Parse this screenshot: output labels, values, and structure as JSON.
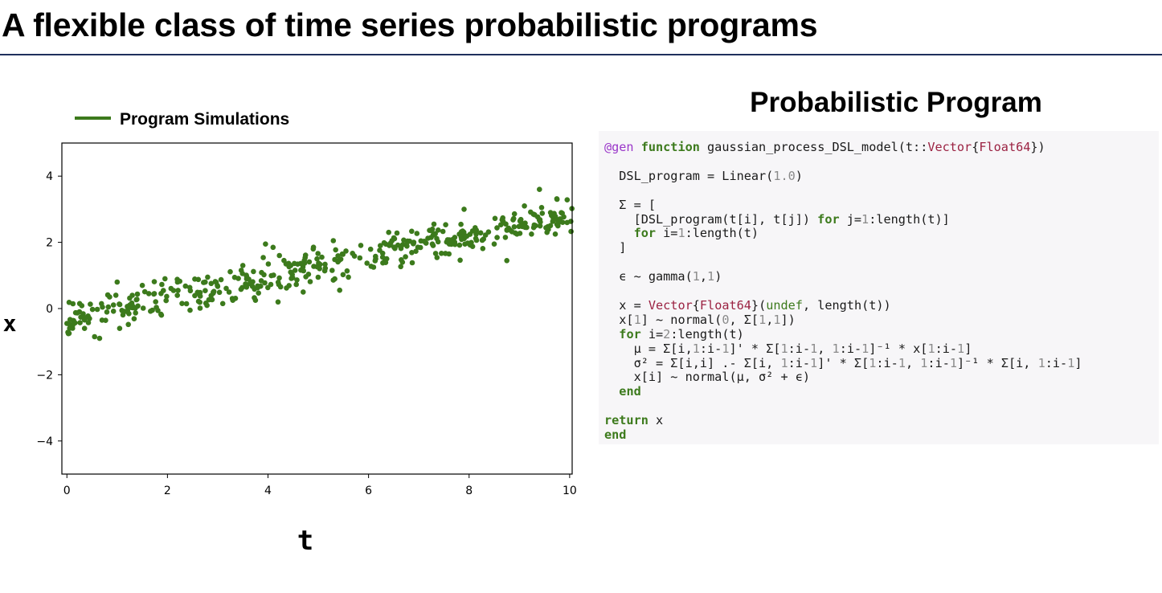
{
  "slide": {
    "title": "A flexible class of time series probabilistic programs"
  },
  "program": {
    "heading": "Probabilistic Program",
    "code_lines": [
      [
        {
          "t": "@gen",
          "c": "mac"
        },
        {
          "t": " "
        },
        {
          "t": "function",
          "c": "kw"
        },
        {
          "t": " gaussian_process_DSL_model(t::"
        },
        {
          "t": "Vector",
          "c": "ty"
        },
        {
          "t": "{"
        },
        {
          "t": "Float64",
          "c": "ty"
        },
        {
          "t": "})"
        }
      ],
      [],
      [
        {
          "t": "  DSL_program = Linear("
        },
        {
          "t": "1.0",
          "c": "num"
        },
        {
          "t": ")"
        }
      ],
      [],
      [
        {
          "t": "  Σ = ["
        }
      ],
      [
        {
          "t": "    [DSL_program(t[i], t[j]) "
        },
        {
          "t": "for",
          "c": "kw"
        },
        {
          "t": " j="
        },
        {
          "t": "1",
          "c": "num"
        },
        {
          "t": ":length(t)]"
        }
      ],
      [
        {
          "t": "    "
        },
        {
          "t": "for",
          "c": "kw"
        },
        {
          "t": " i="
        },
        {
          "t": "1",
          "c": "num"
        },
        {
          "t": ":length(t)"
        }
      ],
      [
        {
          "t": "  ]"
        }
      ],
      [],
      [
        {
          "t": "  ϵ ~ gamma("
        },
        {
          "t": "1",
          "c": "num"
        },
        {
          "t": ","
        },
        {
          "t": "1",
          "c": "num"
        },
        {
          "t": ")"
        }
      ],
      [],
      [
        {
          "t": "  x = "
        },
        {
          "t": "Vector",
          "c": "ty"
        },
        {
          "t": "{"
        },
        {
          "t": "Float64",
          "c": "ty"
        },
        {
          "t": "}("
        },
        {
          "t": "undef",
          "c": "ke"
        },
        {
          "t": ", length(t))"
        }
      ],
      [
        {
          "t": "  x["
        },
        {
          "t": "1",
          "c": "num"
        },
        {
          "t": "] ~ normal("
        },
        {
          "t": "0",
          "c": "num"
        },
        {
          "t": ", Σ["
        },
        {
          "t": "1",
          "c": "num"
        },
        {
          "t": ","
        },
        {
          "t": "1",
          "c": "num"
        },
        {
          "t": "])"
        }
      ],
      [
        {
          "t": "  "
        },
        {
          "t": "for",
          "c": "kw"
        },
        {
          "t": " i="
        },
        {
          "t": "2",
          "c": "num"
        },
        {
          "t": ":length(t)"
        }
      ],
      [
        {
          "t": "    μ = Σ[i,"
        },
        {
          "t": "1",
          "c": "num"
        },
        {
          "t": ":i-"
        },
        {
          "t": "1",
          "c": "num"
        },
        {
          "t": "]' * Σ["
        },
        {
          "t": "1",
          "c": "num"
        },
        {
          "t": ":i-"
        },
        {
          "t": "1",
          "c": "num"
        },
        {
          "t": ", "
        },
        {
          "t": "1",
          "c": "num"
        },
        {
          "t": ":i-"
        },
        {
          "t": "1",
          "c": "num"
        },
        {
          "t": "]⁻¹ * x["
        },
        {
          "t": "1",
          "c": "num"
        },
        {
          "t": ":i-"
        },
        {
          "t": "1",
          "c": "num"
        },
        {
          "t": "]"
        }
      ],
      [
        {
          "t": "    σ² = Σ[i,i] .- Σ[i, "
        },
        {
          "t": "1",
          "c": "num"
        },
        {
          "t": ":i-"
        },
        {
          "t": "1",
          "c": "num"
        },
        {
          "t": "]' * Σ["
        },
        {
          "t": "1",
          "c": "num"
        },
        {
          "t": ":i-"
        },
        {
          "t": "1",
          "c": "num"
        },
        {
          "t": ", "
        },
        {
          "t": "1",
          "c": "num"
        },
        {
          "t": ":i-"
        },
        {
          "t": "1",
          "c": "num"
        },
        {
          "t": "]⁻¹ * Σ[i, "
        },
        {
          "t": "1",
          "c": "num"
        },
        {
          "t": ":i-"
        },
        {
          "t": "1",
          "c": "num"
        },
        {
          "t": "]"
        }
      ],
      [
        {
          "t": "    x[i] ~ normal(μ, σ² + ϵ)"
        }
      ],
      [
        {
          "t": "  "
        },
        {
          "t": "end",
          "c": "kw"
        }
      ],
      [],
      [
        {
          "t": "return",
          "c": "kw"
        },
        {
          "t": " x"
        }
      ],
      [
        {
          "t": "end",
          "c": "kw"
        }
      ]
    ]
  },
  "chart_data": {
    "type": "scatter",
    "xlabel": "t",
    "ylabel": "x",
    "xlim": [
      -0.1,
      10.05
    ],
    "ylim": [
      -5,
      5
    ],
    "xticks": [
      0,
      2,
      4,
      6,
      8,
      10
    ],
    "yticks": [
      -4,
      -2,
      0,
      2,
      4
    ],
    "xtick_labels": [
      "0",
      "2",
      "4",
      "6",
      "8",
      "10"
    ],
    "ytick_labels": [
      "−4",
      "−2",
      "0",
      "2",
      "4"
    ],
    "grid": false,
    "legend_placement": "top-left, above axes",
    "color": "#3c7a1c",
    "series": [
      {
        "name": "Program Simulations",
        "n_points": 400,
        "trend_start": -0.3,
        "trend_slope": 0.31,
        "noise_sd": 0.27,
        "points": [
          [
            0.0,
            -0.45
          ],
          [
            0.1,
            -0.55
          ],
          [
            0.25,
            -0.1
          ],
          [
            0.35,
            -0.6
          ],
          [
            0.45,
            -0.3
          ],
          [
            0.55,
            -0.85
          ],
          [
            0.65,
            -0.9
          ],
          [
            0.7,
            -0.35
          ],
          [
            0.85,
            0.35
          ],
          [
            1.0,
            0.8
          ],
          [
            1.05,
            -0.6
          ],
          [
            1.3,
            0.4
          ],
          [
            1.5,
            0.7
          ],
          [
            1.7,
            -0.05
          ],
          [
            1.95,
            0.9
          ],
          [
            2.2,
            0.8
          ],
          [
            2.45,
            -0.05
          ],
          [
            2.8,
            0.95
          ],
          [
            3.1,
            0.15
          ],
          [
            3.3,
            0.25
          ],
          [
            3.5,
            1.3
          ],
          [
            3.75,
            0.25
          ],
          [
            3.95,
            1.95
          ],
          [
            4.1,
            1.85
          ],
          [
            4.2,
            0.2
          ],
          [
            4.45,
            1.1
          ],
          [
            4.7,
            0.5
          ],
          [
            4.9,
            1.8
          ],
          [
            5.3,
            2.05
          ],
          [
            5.6,
            0.95
          ],
          [
            6.1,
            1.25
          ],
          [
            6.4,
            2.3
          ],
          [
            6.9,
            2.0
          ],
          [
            7.3,
            2.55
          ],
          [
            7.6,
            1.65
          ],
          [
            7.9,
            3.0
          ],
          [
            8.5,
            1.95
          ],
          [
            8.75,
            1.45
          ],
          [
            9.1,
            3.1
          ],
          [
            9.4,
            3.6
          ],
          [
            9.55,
            2.3
          ],
          [
            9.75,
            3.3
          ],
          [
            9.95,
            2.6
          ]
        ]
      }
    ]
  }
}
